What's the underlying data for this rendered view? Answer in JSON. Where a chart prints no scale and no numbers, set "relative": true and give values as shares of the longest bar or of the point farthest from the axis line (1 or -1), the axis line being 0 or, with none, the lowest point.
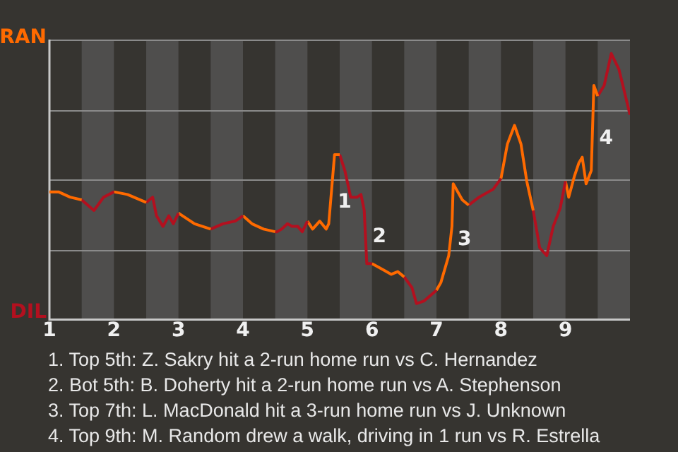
{
  "chart_data": {
    "type": "line",
    "relative": true,
    "series": [
      {
        "color": "#ff6a00",
        "x": [
          1,
          1.14,
          1.32,
          1.5
        ],
        "values": [
          0.48,
          0.48,
          0.46,
          0.45
        ]
      },
      {
        "color": "#b3101f",
        "x": [
          1.5,
          1.69,
          1.84,
          2
        ],
        "values": [
          0.45,
          0.41,
          0.46,
          0.48
        ]
      },
      {
        "color": "#ff6a00",
        "x": [
          2,
          2.21,
          2.5
        ],
        "values": [
          0.48,
          0.47,
          0.44
        ]
      },
      {
        "color": "#b3101f",
        "x": [
          2.5,
          2.6,
          2.66,
          2.76,
          2.85,
          2.92,
          3
        ],
        "values": [
          0.44,
          0.46,
          0.39,
          0.35,
          0.39,
          0.36,
          0.4
        ]
      },
      {
        "color": "#ff6a00",
        "x": [
          3,
          3.25,
          3.5
        ],
        "values": [
          0.4,
          0.36,
          0.34
        ]
      },
      {
        "color": "#b3101f",
        "x": [
          3.5,
          3.69,
          3.88,
          4
        ],
        "values": [
          0.34,
          0.36,
          0.37,
          0.39
        ]
      },
      {
        "color": "#ff6a00",
        "x": [
          4,
          4.14,
          4.32,
          4.5
        ],
        "values": [
          0.39,
          0.36,
          0.34,
          0.33
        ]
      },
      {
        "color": "#b3101f",
        "x": [
          4.5,
          4.53,
          4.6,
          4.69,
          4.76,
          4.85,
          4.92,
          5
        ],
        "values": [
          0.33,
          0.33,
          0.34,
          0.36,
          0.35,
          0.35,
          0.33,
          0.37
        ]
      },
      {
        "color": "#ff6a00",
        "x": [
          5,
          5.08,
          5.19,
          5.29,
          5.33,
          5.42,
          5.5
        ],
        "values": [
          0.37,
          0.34,
          0.37,
          0.34,
          0.36,
          0.62,
          0.62
        ]
      },
      {
        "color": "#b3101f",
        "x": [
          5.5,
          5.58,
          5.67,
          5.77,
          5.83,
          5.88,
          5.92,
          6
        ],
        "values": [
          0.62,
          0.56,
          0.46,
          0.46,
          0.47,
          0.41,
          0.21,
          0.21
        ]
      },
      {
        "color": "#ff6a00",
        "x": [
          6,
          6.15,
          6.3,
          6.4,
          6.5
        ],
        "values": [
          0.21,
          0.19,
          0.17,
          0.18,
          0.16
        ]
      },
      {
        "color": "#b3101f",
        "x": [
          6.5,
          6.62,
          6.69,
          6.81,
          7
        ],
        "values": [
          0.16,
          0.12,
          0.06,
          0.07,
          0.11
        ]
      },
      {
        "color": "#ff6a00",
        "x": [
          7,
          7.07,
          7.19,
          7.24,
          7.26,
          7.4,
          7.5
        ],
        "values": [
          0.11,
          0.14,
          0.24,
          0.35,
          0.51,
          0.45,
          0.43
        ]
      },
      {
        "color": "#b3101f",
        "x": [
          7.5,
          7.66,
          7.88,
          8
        ],
        "values": [
          0.43,
          0.46,
          0.49,
          0.53
        ]
      },
      {
        "color": "#ff6a00",
        "x": [
          8,
          8.1,
          8.21,
          8.31,
          8.4,
          8.5
        ],
        "values": [
          0.53,
          0.66,
          0.73,
          0.66,
          0.52,
          0.41
        ]
      },
      {
        "color": "#b3101f",
        "x": [
          8.5,
          8.6,
          8.71,
          8.81,
          8.92,
          9
        ],
        "values": [
          0.41,
          0.27,
          0.24,
          0.35,
          0.42,
          0.52
        ]
      },
      {
        "color": "#ff6a00",
        "x": [
          9,
          9.05,
          9.14,
          9.21,
          9.26,
          9.32,
          9.4,
          9.44,
          9.5
        ],
        "values": [
          0.52,
          0.46,
          0.54,
          0.59,
          0.61,
          0.51,
          0.56,
          0.88,
          0.84
        ]
      },
      {
        "color": "#b3101f",
        "x": [
          9.5,
          9.6,
          9.71,
          9.83,
          9.9,
          10
        ],
        "values": [
          0.84,
          0.88,
          1,
          0.94,
          0.87,
          0.77
        ]
      }
    ],
    "xlim": [
      1,
      10
    ],
    "xticks": [
      1,
      2,
      3,
      4,
      5,
      6,
      7,
      8,
      9
    ],
    "grid": "y",
    "marker": "none",
    "bands": [
      {
        "axis": "x",
        "from": 1.5,
        "to": 2,
        "color": "#4f4e4d"
      },
      {
        "axis": "x",
        "from": 2.5,
        "to": 3,
        "color": "#4f4e4d"
      },
      {
        "axis": "x",
        "from": 3.5,
        "to": 4,
        "color": "#4f4e4d"
      },
      {
        "axis": "x",
        "from": 4.5,
        "to": 5,
        "color": "#4f4e4d"
      },
      {
        "axis": "x",
        "from": 5.5,
        "to": 6,
        "color": "#4f4e4d"
      },
      {
        "axis": "x",
        "from": 6.5,
        "to": 7,
        "color": "#4f4e4d"
      },
      {
        "axis": "x",
        "from": 7.5,
        "to": 8,
        "color": "#4f4e4d"
      },
      {
        "axis": "x",
        "from": 8.5,
        "to": 9,
        "color": "#4f4e4d"
      },
      {
        "axis": "x",
        "from": 9.5,
        "to": 10,
        "color": "#4f4e4d"
      }
    ],
    "annotations": [
      "RAN",
      "DIL",
      {
        "text": "1",
        "x": 5.36,
        "y": 0.44
      },
      {
        "text": "2",
        "x": 5.9,
        "y": 0.31
      },
      {
        "text": "3",
        "x": 7.22,
        "y": 0.3
      },
      {
        "text": "4",
        "x": 9.415,
        "y": 0.68
      },
      "1. Top 5th: Z. Sakry hit a 2-run home run vs C. Hernandez",
      "2. Bot 5th: B. Doherty hit a 2-run home run vs A. Stephenson",
      "3. Top 7th: L. MacDonald hit a 3-run home run vs J. Unknown",
      "4. Top 9th: M. Random drew a walk, driving in 1 run vs R. Estrella"
    ]
  }
}
